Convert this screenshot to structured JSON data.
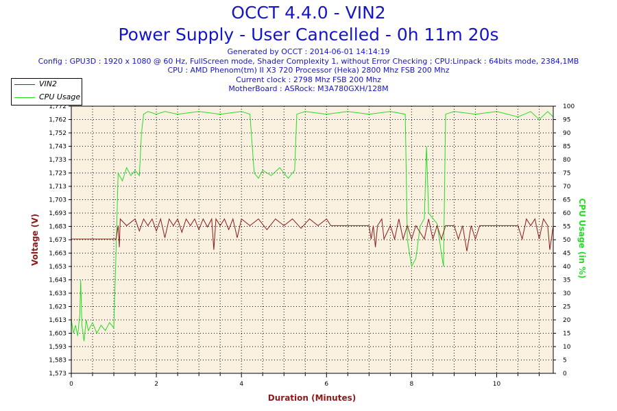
{
  "header": {
    "title": "OCCT 4.4.0 - VIN2",
    "subtitle": "Power Supply - User Cancelled - 0h 11m 20s",
    "info_lines": [
      "Generated by OCCT : 2014-06-01 14:14:19",
      "Config : GPU3D : 1920 x 1080 @ 60 Hz, FullScreen mode, Shader Complexity 1, without Error Checking ; CPU:Linpack : 64bits mode, 2384,1MB",
      "CPU : AMD Phenom(tm) II X3 720 Processor (Heka) 2800 Mhz FSB 200 Mhz",
      "Current clock : 2798 Mhz FSB 200 Mhz",
      "MotherBoard : ASRock: M3A780GXH/128M"
    ]
  },
  "chart_data": {
    "type": "line",
    "xlabel": "Duration (Minutes)",
    "ylabel": "Voltage (V)",
    "y2label": "CPU Usage (in %)",
    "xlim": [
      0,
      11.33
    ],
    "ylim": [
      1.573,
      1.772
    ],
    "y2lim": [
      0,
      100
    ],
    "x_ticks": [
      "0",
      "2",
      "4",
      "6",
      "8",
      "10"
    ],
    "y_ticks": [
      "1,573",
      "1,583",
      "1,593",
      "1,603",
      "1,613",
      "1,623",
      "1,633",
      "1,643",
      "1,653",
      "1,663",
      "1,673",
      "1,683",
      "1,693",
      "1,703",
      "1,713",
      "1,723",
      "1,733",
      "1,743",
      "1,752",
      "1,762",
      "1,772"
    ],
    "y2_ticks": [
      "0",
      "5",
      "10",
      "15",
      "20",
      "25",
      "30",
      "35",
      "40",
      "45",
      "50",
      "55",
      "60",
      "65",
      "70",
      "75",
      "80",
      "85",
      "90",
      "95",
      "100"
    ],
    "grid": true,
    "legend_position": "top-left",
    "series": [
      {
        "name": "VIN2",
        "color": "#8b1a1a",
        "axis": "left",
        "points": [
          [
            0,
            1.673
          ],
          [
            0.5,
            1.673
          ],
          [
            1.0,
            1.673
          ],
          [
            1.05,
            1.673
          ],
          [
            1.1,
            1.683
          ],
          [
            1.13,
            1.667
          ],
          [
            1.15,
            1.688
          ],
          [
            1.3,
            1.683
          ],
          [
            1.5,
            1.688
          ],
          [
            1.6,
            1.679
          ],
          [
            1.7,
            1.688
          ],
          [
            1.8,
            1.683
          ],
          [
            1.9,
            1.688
          ],
          [
            2.0,
            1.679
          ],
          [
            2.1,
            1.688
          ],
          [
            2.2,
            1.674
          ],
          [
            2.3,
            1.688
          ],
          [
            2.4,
            1.683
          ],
          [
            2.5,
            1.688
          ],
          [
            2.6,
            1.678
          ],
          [
            2.7,
            1.688
          ],
          [
            2.8,
            1.683
          ],
          [
            2.9,
            1.688
          ],
          [
            3.0,
            1.68
          ],
          [
            3.1,
            1.688
          ],
          [
            3.2,
            1.682
          ],
          [
            3.3,
            1.688
          ],
          [
            3.35,
            1.665
          ],
          [
            3.4,
            1.688
          ],
          [
            3.5,
            1.683
          ],
          [
            3.6,
            1.688
          ],
          [
            3.7,
            1.68
          ],
          [
            3.8,
            1.688
          ],
          [
            3.9,
            1.674
          ],
          [
            4.0,
            1.688
          ],
          [
            4.2,
            1.683
          ],
          [
            4.4,
            1.688
          ],
          [
            4.6,
            1.68
          ],
          [
            4.8,
            1.688
          ],
          [
            5.0,
            1.683
          ],
          [
            5.2,
            1.688
          ],
          [
            5.4,
            1.681
          ],
          [
            5.6,
            1.688
          ],
          [
            5.8,
            1.683
          ],
          [
            6.0,
            1.688
          ],
          [
            6.1,
            1.683
          ],
          [
            6.2,
            1.683
          ],
          [
            6.4,
            1.683
          ],
          [
            6.8,
            1.683
          ],
          [
            7.0,
            1.683
          ],
          [
            7.05,
            1.673
          ],
          [
            7.1,
            1.683
          ],
          [
            7.15,
            1.667
          ],
          [
            7.2,
            1.683
          ],
          [
            7.3,
            1.688
          ],
          [
            7.35,
            1.673
          ],
          [
            7.5,
            1.683
          ],
          [
            7.6,
            1.673
          ],
          [
            7.7,
            1.688
          ],
          [
            7.8,
            1.673
          ],
          [
            7.9,
            1.683
          ],
          [
            8.0,
            1.673
          ],
          [
            8.1,
            1.683
          ],
          [
            8.3,
            1.673
          ],
          [
            8.4,
            1.688
          ],
          [
            8.5,
            1.673
          ],
          [
            8.6,
            1.683
          ],
          [
            8.7,
            1.673
          ],
          [
            8.8,
            1.683
          ],
          [
            9.0,
            1.683
          ],
          [
            9.1,
            1.673
          ],
          [
            9.2,
            1.683
          ],
          [
            9.3,
            1.664
          ],
          [
            9.4,
            1.683
          ],
          [
            9.5,
            1.673
          ],
          [
            9.6,
            1.683
          ],
          [
            9.7,
            1.683
          ],
          [
            10.0,
            1.683
          ],
          [
            10.5,
            1.683
          ],
          [
            10.6,
            1.673
          ],
          [
            10.7,
            1.688
          ],
          [
            10.8,
            1.683
          ],
          [
            10.9,
            1.688
          ],
          [
            11.0,
            1.673
          ],
          [
            11.1,
            1.688
          ],
          [
            11.2,
            1.683
          ],
          [
            11.25,
            1.665
          ],
          [
            11.33,
            1.683
          ]
        ]
      },
      {
        "name": "CPU Usage",
        "color": "#22dd22",
        "axis": "right",
        "points": [
          [
            0,
            20
          ],
          [
            0.05,
            15
          ],
          [
            0.1,
            18
          ],
          [
            0.15,
            14
          ],
          [
            0.2,
            22
          ],
          [
            0.22,
            35
          ],
          [
            0.25,
            18
          ],
          [
            0.3,
            12
          ],
          [
            0.35,
            20
          ],
          [
            0.4,
            16
          ],
          [
            0.5,
            19
          ],
          [
            0.6,
            15
          ],
          [
            0.7,
            18
          ],
          [
            0.8,
            16
          ],
          [
            0.9,
            19
          ],
          [
            1.0,
            17
          ],
          [
            1.05,
            45
          ],
          [
            1.1,
            75
          ],
          [
            1.2,
            72
          ],
          [
            1.3,
            77
          ],
          [
            1.4,
            74
          ],
          [
            1.5,
            76
          ],
          [
            1.6,
            74
          ],
          [
            1.65,
            90
          ],
          [
            1.7,
            97
          ],
          [
            1.8,
            98
          ],
          [
            2.0,
            97
          ],
          [
            2.2,
            98
          ],
          [
            2.5,
            97
          ],
          [
            3.0,
            98
          ],
          [
            3.5,
            97
          ],
          [
            4.0,
            98
          ],
          [
            4.2,
            97
          ],
          [
            4.3,
            75
          ],
          [
            4.4,
            73
          ],
          [
            4.5,
            76
          ],
          [
            4.7,
            74
          ],
          [
            4.9,
            77
          ],
          [
            5.1,
            73
          ],
          [
            5.25,
            76
          ],
          [
            5.3,
            97
          ],
          [
            5.5,
            98
          ],
          [
            6.0,
            97
          ],
          [
            6.5,
            98
          ],
          [
            7.0,
            97
          ],
          [
            7.5,
            98
          ],
          [
            7.85,
            97
          ],
          [
            7.9,
            50
          ],
          [
            7.95,
            45
          ],
          [
            8.0,
            40
          ],
          [
            8.1,
            43
          ],
          [
            8.2,
            55
          ],
          [
            8.3,
            58
          ],
          [
            8.35,
            85
          ],
          [
            8.4,
            60
          ],
          [
            8.5,
            58
          ],
          [
            8.6,
            56
          ],
          [
            8.7,
            45
          ],
          [
            8.75,
            40
          ],
          [
            8.8,
            97
          ],
          [
            9.0,
            98
          ],
          [
            9.5,
            97
          ],
          [
            10.0,
            98
          ],
          [
            10.5,
            96
          ],
          [
            10.8,
            98
          ],
          [
            11.0,
            95
          ],
          [
            11.2,
            98
          ],
          [
            11.33,
            96
          ]
        ]
      }
    ]
  }
}
